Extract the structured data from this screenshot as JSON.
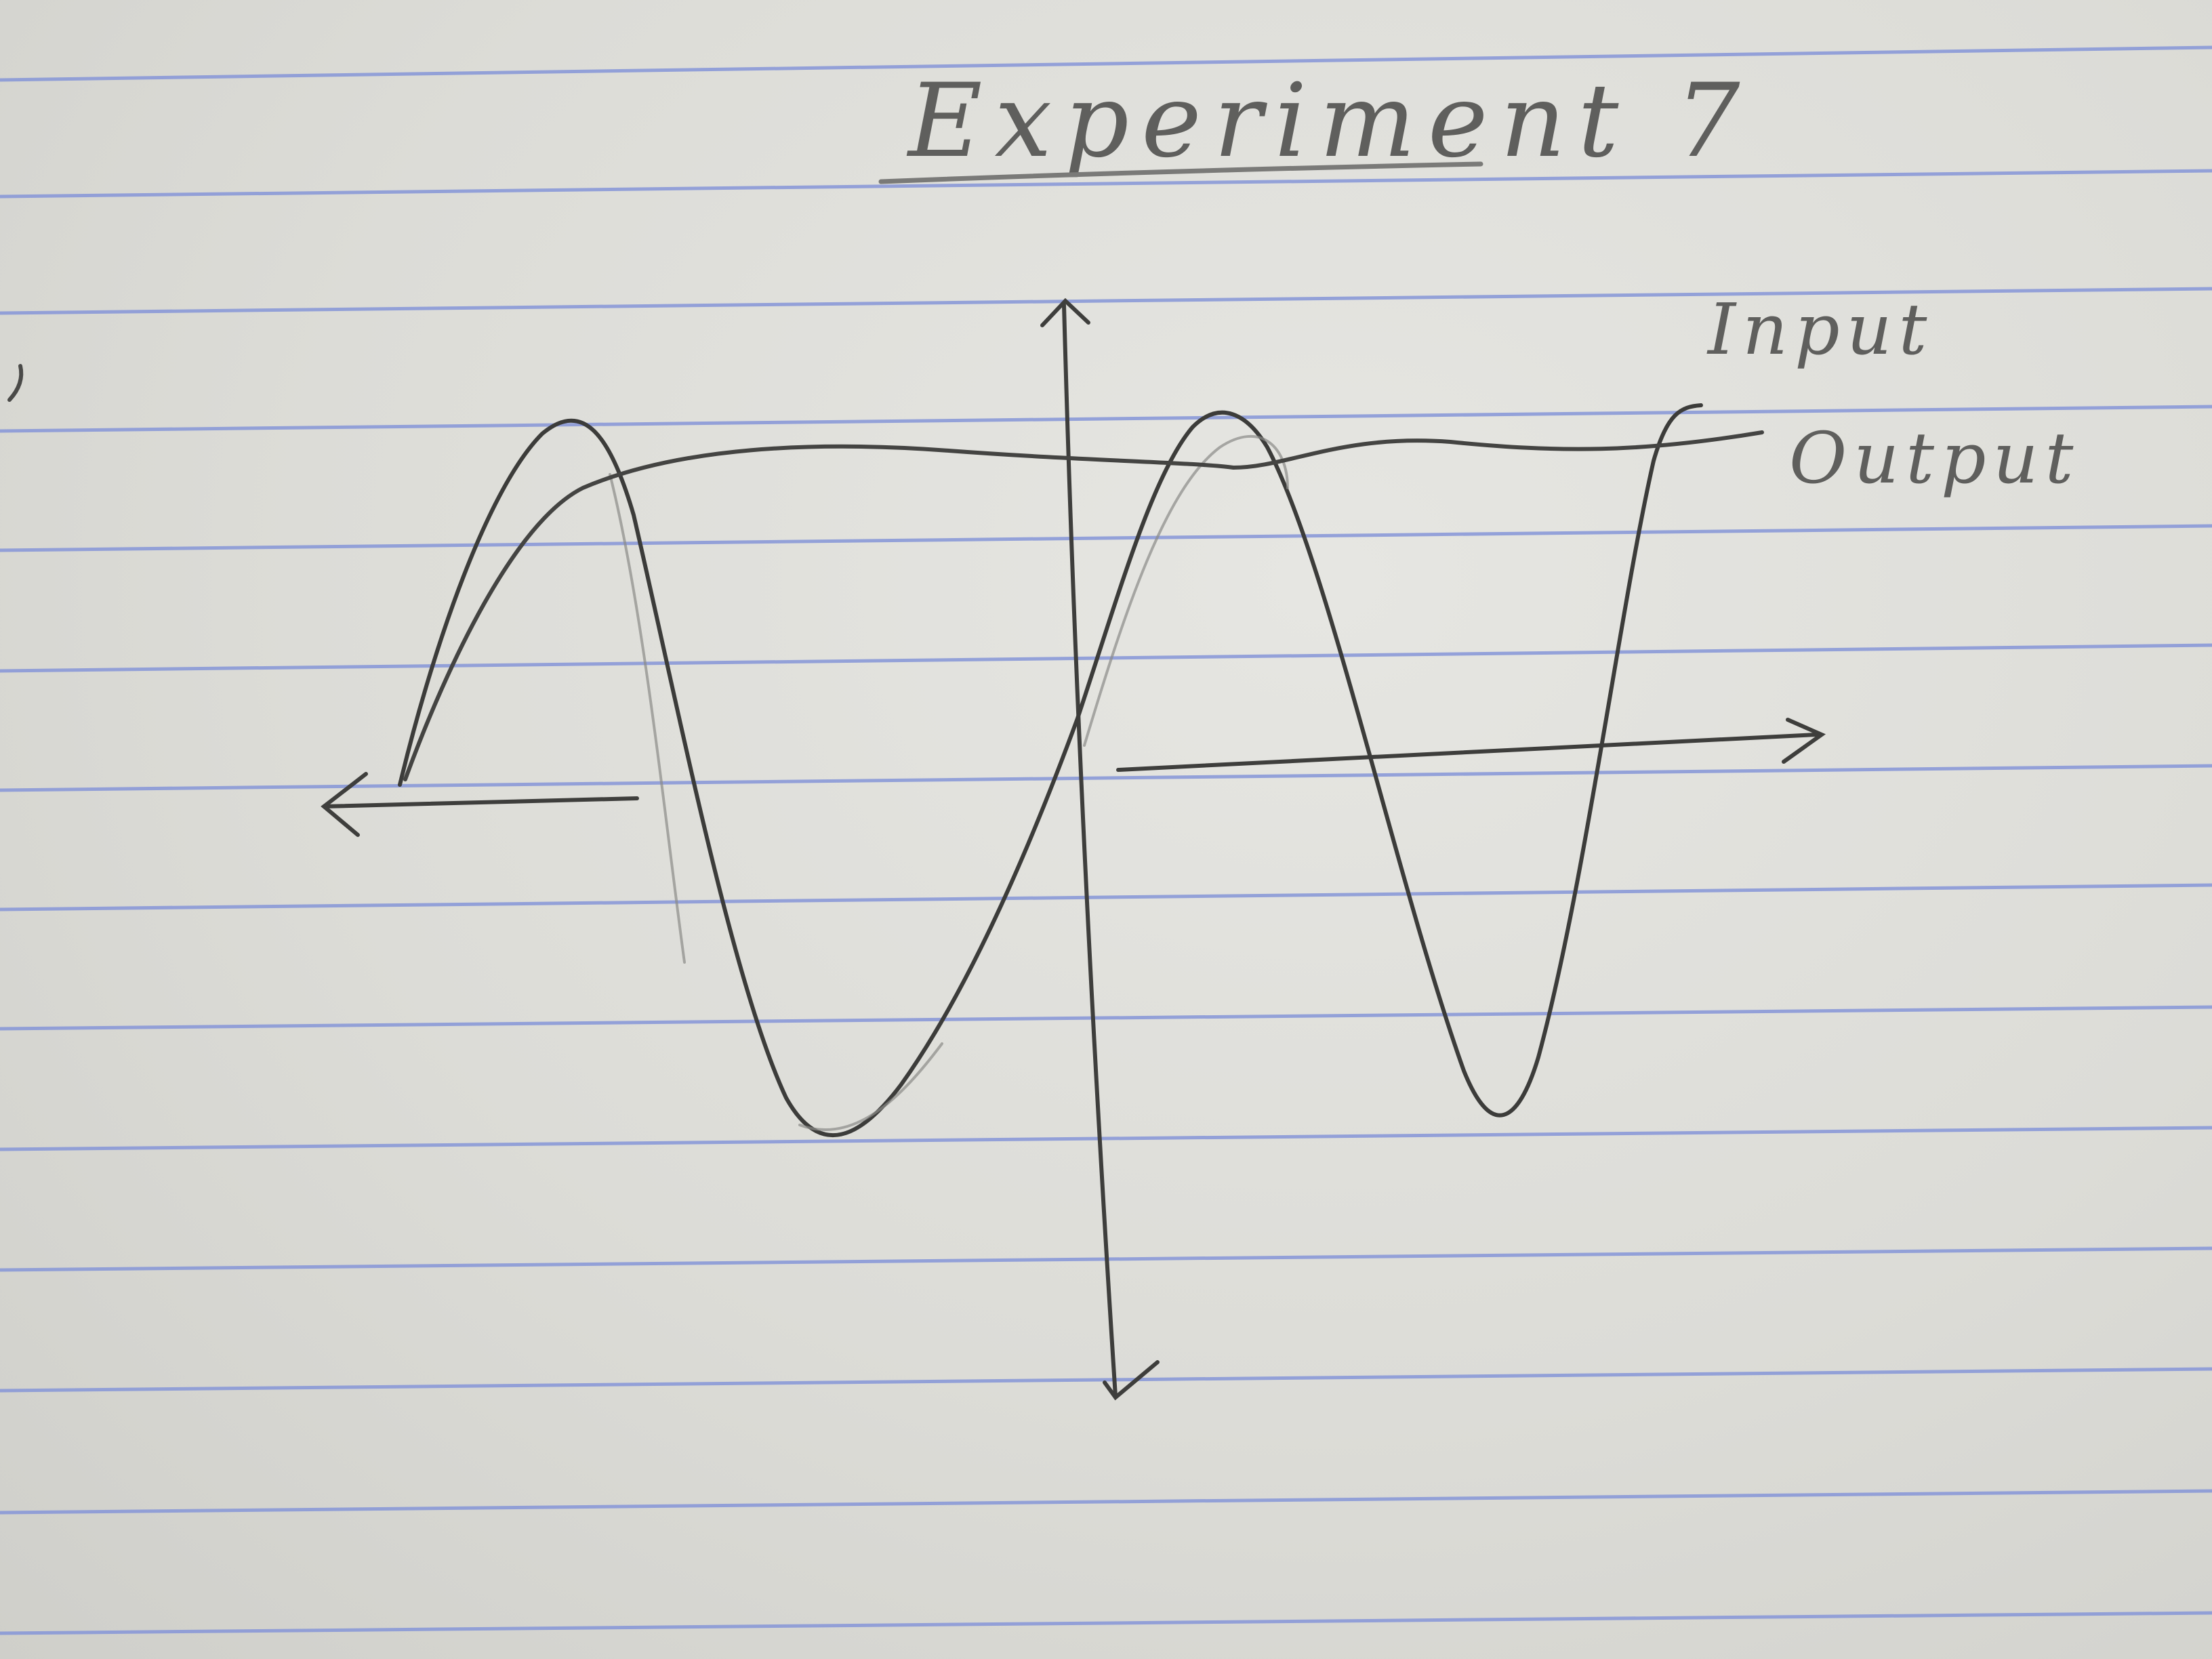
{
  "page": {
    "title": "Experiment 7",
    "labels": {
      "input": "Input",
      "output": "Output"
    }
  },
  "colors": {
    "paper": "#dcdcd8",
    "ruled_line": "#7f8fd6",
    "pencil": "#4a4a48"
  }
}
